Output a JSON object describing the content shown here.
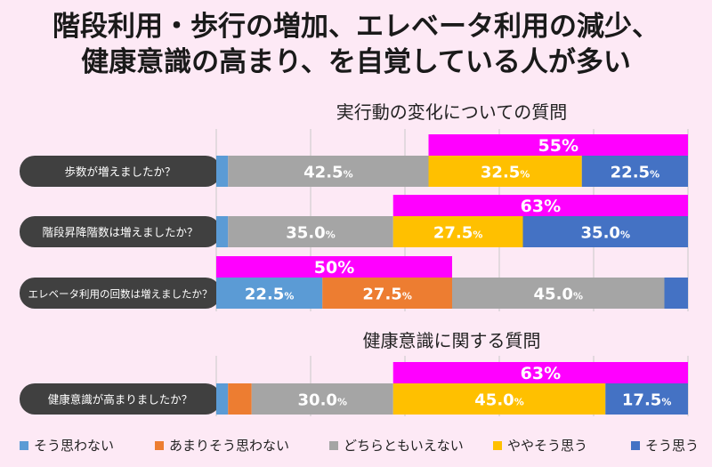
{
  "title_lines": [
    "階段利用・歩行の増加、エレベータ利用の減少、",
    "健康意識の高まり、を自覚している人が多い"
  ],
  "sections": [
    "実行動の変化についての質問",
    "健康意識に関する質問"
  ],
  "colors": {
    "そう思わない": "#5b9bd5",
    "あまりそう思わない": "#ed7d31",
    "どちらともいえない": "#a5a5a5",
    "ややそう思う": "#ffc000",
    "そう思う": "#4472c4",
    "highlight": "#ff00ff",
    "label_bg": "#404040"
  },
  "chart_data": {
    "type": "bar",
    "orientation": "horizontal",
    "stacked": true,
    "xlim": [
      0,
      100
    ],
    "grid": true,
    "legend_position": "bottom",
    "series_names": [
      "そう思わない",
      "あまりそう思わない",
      "どちらともいえない",
      "ややそう思う",
      "そう思う"
    ],
    "questions": [
      {
        "label": "歩数が増えましたか？",
        "values": [
          2.5,
          0,
          42.5,
          32.5,
          22.5
        ],
        "labels": [
          "",
          "",
          "42.5",
          "32.5",
          "22.5"
        ],
        "highlight": {
          "label": "55",
          "start": 45.0,
          "end": 100
        }
      },
      {
        "label": "階段昇降階数は増えましたか？",
        "values": [
          2.5,
          0,
          35.0,
          27.5,
          35.0
        ],
        "labels": [
          "",
          "",
          "35.0",
          "27.5",
          "35.0"
        ],
        "highlight": {
          "label": "63",
          "start": 37.5,
          "end": 100
        }
      },
      {
        "label": "エレベータ利用の回数は増えましたか？",
        "values": [
          22.5,
          27.5,
          45.0,
          0,
          5.0
        ],
        "labels": [
          "22.5",
          "27.5",
          "45.0",
          "",
          ""
        ],
        "highlight": {
          "label": "50",
          "start": 0,
          "end": 50.0
        }
      },
      {
        "label": "健康意識が高まりましたか？",
        "values": [
          2.5,
          5.0,
          30.0,
          45.0,
          17.5
        ],
        "labels": [
          "",
          "",
          "30.0",
          "45.0",
          "17.5"
        ],
        "highlight": {
          "label": "63",
          "start": 37.5,
          "end": 100
        }
      }
    ]
  },
  "units": {
    "percent": "%"
  }
}
